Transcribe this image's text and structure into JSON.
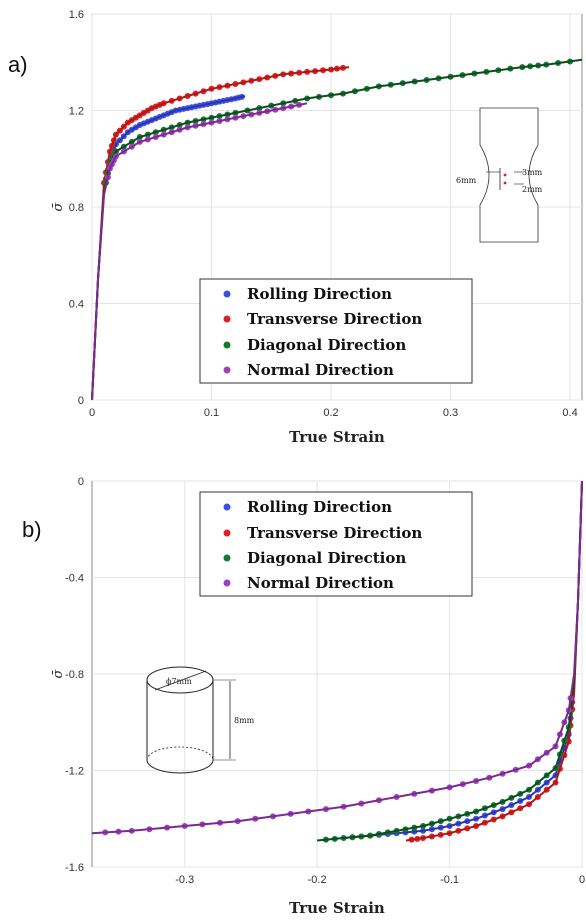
{
  "colors": {
    "rolling": "#3b4ee8",
    "transverse": "#e02020",
    "diagonal": "#107a30",
    "normal": "#a040c0",
    "fit": "#1a3a10"
  },
  "chart_data": [
    {
      "panel_label": "a)",
      "type": "line",
      "xlabel": "True Strain",
      "ylabel": "σ̄",
      "xlim": [
        0,
        0.41
      ],
      "ylim": [
        0,
        1.6
      ],
      "xticks": [
        "0",
        "0.1",
        "0.2",
        "0.3",
        "0.4"
      ],
      "xtick_values": [
        0,
        0.1,
        0.2,
        0.3,
        0.4
      ],
      "yticks": [
        "0",
        "0.4",
        "0.8",
        "1.2",
        "1.6"
      ],
      "ytick_values": [
        0,
        0.4,
        0.8,
        1.2,
        1.6
      ],
      "legend": [
        "Rolling Direction",
        "Transverse Direction",
        "Diagonal Direction",
        "Normal Direction"
      ],
      "legend_position": "bottom-right",
      "annotation": {
        "labels": [
          "6mm",
          "3mm",
          "2mm"
        ],
        "description": "dog-bone tensile specimen"
      },
      "series": [
        {
          "name": "Rolling Direction",
          "color_key": "rolling",
          "points": [
            [
              0.0,
              0.0
            ],
            [
              0.005,
              0.5
            ],
            [
              0.01,
              0.88
            ],
            [
              0.015,
              0.99
            ],
            [
              0.02,
              1.06
            ],
            [
              0.03,
              1.11
            ],
            [
              0.04,
              1.14
            ],
            [
              0.05,
              1.16
            ],
            [
              0.06,
              1.18
            ],
            [
              0.07,
              1.2
            ],
            [
              0.08,
              1.21
            ],
            [
              0.09,
              1.22
            ],
            [
              0.1,
              1.23
            ],
            [
              0.11,
              1.24
            ],
            [
              0.12,
              1.25
            ],
            [
              0.128,
              1.26
            ]
          ]
        },
        {
          "name": "Transverse Direction",
          "color_key": "transverse",
          "points": [
            [
              0.0,
              0.0
            ],
            [
              0.005,
              0.5
            ],
            [
              0.01,
              0.9
            ],
            [
              0.015,
              1.03
            ],
            [
              0.02,
              1.1
            ],
            [
              0.03,
              1.15
            ],
            [
              0.04,
              1.18
            ],
            [
              0.05,
              1.21
            ],
            [
              0.06,
              1.23
            ],
            [
              0.08,
              1.26
            ],
            [
              0.1,
              1.29
            ],
            [
              0.12,
              1.31
            ],
            [
              0.14,
              1.33
            ],
            [
              0.16,
              1.35
            ],
            [
              0.18,
              1.36
            ],
            [
              0.2,
              1.37
            ],
            [
              0.215,
              1.38
            ]
          ]
        },
        {
          "name": "Diagonal Direction",
          "color_key": "diagonal",
          "points": [
            [
              0.0,
              0.0
            ],
            [
              0.005,
              0.5
            ],
            [
              0.01,
              0.86
            ],
            [
              0.015,
              0.98
            ],
            [
              0.02,
              1.03
            ],
            [
              0.04,
              1.09
            ],
            [
              0.06,
              1.12
            ],
            [
              0.08,
              1.15
            ],
            [
              0.1,
              1.17
            ],
            [
              0.12,
              1.19
            ],
            [
              0.15,
              1.22
            ],
            [
              0.18,
              1.25
            ],
            [
              0.21,
              1.27
            ],
            [
              0.24,
              1.3
            ],
            [
              0.27,
              1.32
            ],
            [
              0.3,
              1.34
            ],
            [
              0.33,
              1.36
            ],
            [
              0.36,
              1.38
            ],
            [
              0.38,
              1.39
            ],
            [
              0.41,
              1.41
            ]
          ]
        },
        {
          "name": "Normal Direction",
          "color_key": "normal",
          "points": [
            [
              0.0,
              0.0
            ],
            [
              0.005,
              0.5
            ],
            [
              0.01,
              0.85
            ],
            [
              0.015,
              0.96
            ],
            [
              0.02,
              1.01
            ],
            [
              0.04,
              1.07
            ],
            [
              0.06,
              1.1
            ],
            [
              0.08,
              1.13
            ],
            [
              0.1,
              1.15
            ],
            [
              0.12,
              1.17
            ],
            [
              0.14,
              1.19
            ],
            [
              0.16,
              1.21
            ],
            [
              0.18,
              1.23
            ]
          ]
        }
      ]
    },
    {
      "panel_label": "b)",
      "type": "line",
      "xlabel": "True Strain",
      "ylabel": "σ̄",
      "xlim": [
        -0.37,
        0.0
      ],
      "ylim": [
        -1.6,
        0.0
      ],
      "xticks": [
        "-0.3",
        "-0.2",
        "-0.1",
        "0"
      ],
      "xtick_values": [
        -0.3,
        -0.2,
        -0.1,
        0.0
      ],
      "yticks": [
        "0",
        "-0.4",
        "-0.8",
        "-1.2",
        "-1.6"
      ],
      "ytick_values": [
        0.0,
        -0.4,
        -0.8,
        -1.2,
        -1.6
      ],
      "legend": [
        "Rolling Direction",
        "Transverse Direction",
        "Diagonal Direction",
        "Normal Direction"
      ],
      "legend_position": "top-right",
      "annotation": {
        "labels": [
          "ϕ7mm",
          "8mm"
        ],
        "description": "cylindrical compression specimen"
      },
      "series": [
        {
          "name": "Rolling Direction",
          "color_key": "rolling",
          "points": [
            [
              0.0,
              0.0
            ],
            [
              -0.003,
              -0.5
            ],
            [
              -0.006,
              -0.85
            ],
            [
              -0.01,
              -1.05
            ],
            [
              -0.02,
              -1.22
            ],
            [
              -0.04,
              -1.31
            ],
            [
              -0.06,
              -1.36
            ],
            [
              -0.08,
              -1.4
            ],
            [
              -0.1,
              -1.43
            ],
            [
              -0.12,
              -1.45
            ],
            [
              -0.14,
              -1.46
            ],
            [
              -0.16,
              -1.47
            ],
            [
              -0.18,
              -1.48
            ]
          ]
        },
        {
          "name": "Transverse Direction",
          "color_key": "transverse",
          "points": [
            [
              0.0,
              0.0
            ],
            [
              -0.003,
              -0.5
            ],
            [
              -0.006,
              -0.88
            ],
            [
              -0.01,
              -1.08
            ],
            [
              -0.02,
              -1.25
            ],
            [
              -0.04,
              -1.34
            ],
            [
              -0.06,
              -1.39
            ],
            [
              -0.08,
              -1.43
            ],
            [
              -0.1,
              -1.46
            ],
            [
              -0.12,
              -1.48
            ],
            [
              -0.133,
              -1.49
            ]
          ]
        },
        {
          "name": "Diagonal Direction",
          "color_key": "diagonal",
          "points": [
            [
              0.0,
              0.0
            ],
            [
              -0.003,
              -0.5
            ],
            [
              -0.006,
              -0.83
            ],
            [
              -0.01,
              -1.02
            ],
            [
              -0.02,
              -1.19
            ],
            [
              -0.04,
              -1.28
            ],
            [
              -0.06,
              -1.33
            ],
            [
              -0.08,
              -1.37
            ],
            [
              -0.1,
              -1.4
            ],
            [
              -0.12,
              -1.43
            ],
            [
              -0.14,
              -1.45
            ],
            [
              -0.16,
              -1.47
            ],
            [
              -0.18,
              -1.48
            ],
            [
              -0.2,
              -1.49
            ]
          ]
        },
        {
          "name": "Normal Direction",
          "color_key": "normal",
          "points": [
            [
              0.0,
              0.0
            ],
            [
              -0.003,
              -0.5
            ],
            [
              -0.006,
              -0.8
            ],
            [
              -0.01,
              -0.95
            ],
            [
              -0.02,
              -1.1
            ],
            [
              -0.04,
              -1.18
            ],
            [
              -0.07,
              -1.23
            ],
            [
              -0.1,
              -1.27
            ],
            [
              -0.14,
              -1.31
            ],
            [
              -0.18,
              -1.35
            ],
            [
              -0.22,
              -1.38
            ],
            [
              -0.26,
              -1.41
            ],
            [
              -0.3,
              -1.43
            ],
            [
              -0.34,
              -1.45
            ],
            [
              -0.37,
              -1.46
            ]
          ]
        }
      ]
    }
  ]
}
